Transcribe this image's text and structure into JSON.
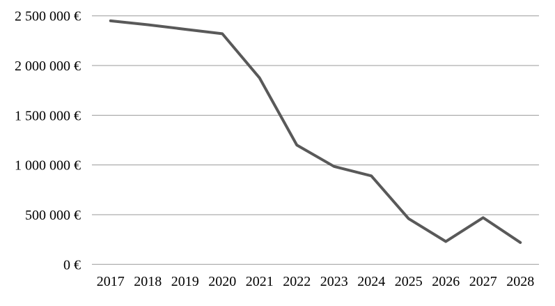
{
  "chart_data": {
    "type": "line",
    "title": "",
    "categories": [
      "2017",
      "2018",
      "2019",
      "2020",
      "2021",
      "2022",
      "2023",
      "2024",
      "2025",
      "2026",
      "2027",
      "2028"
    ],
    "series": [
      {
        "name": "value-eur",
        "values": [
          2450000,
          2410000,
          2365000,
          2320000,
          1875000,
          1200000,
          985000,
          890000,
          460000,
          230000,
          470000,
          220000
        ]
      }
    ],
    "xlabel": "",
    "ylabel": "",
    "ylim": [
      0,
      2500000
    ],
    "y_ticks": [
      {
        "value": 0,
        "label": "0 €"
      },
      {
        "value": 500000,
        "label": "500 000 €"
      },
      {
        "value": 1000000,
        "label": "1 000 000 €"
      },
      {
        "value": 1500000,
        "label": "1 500 000 €"
      },
      {
        "value": 2000000,
        "label": "2 000 000 €"
      },
      {
        "value": 2500000,
        "label": "2 500 000 €"
      }
    ],
    "grid": "horizontal",
    "legend": "none",
    "colors": {
      "line": "#595959",
      "gridline": "#999999",
      "tick_text": "#000000",
      "background": "#ffffff"
    }
  }
}
